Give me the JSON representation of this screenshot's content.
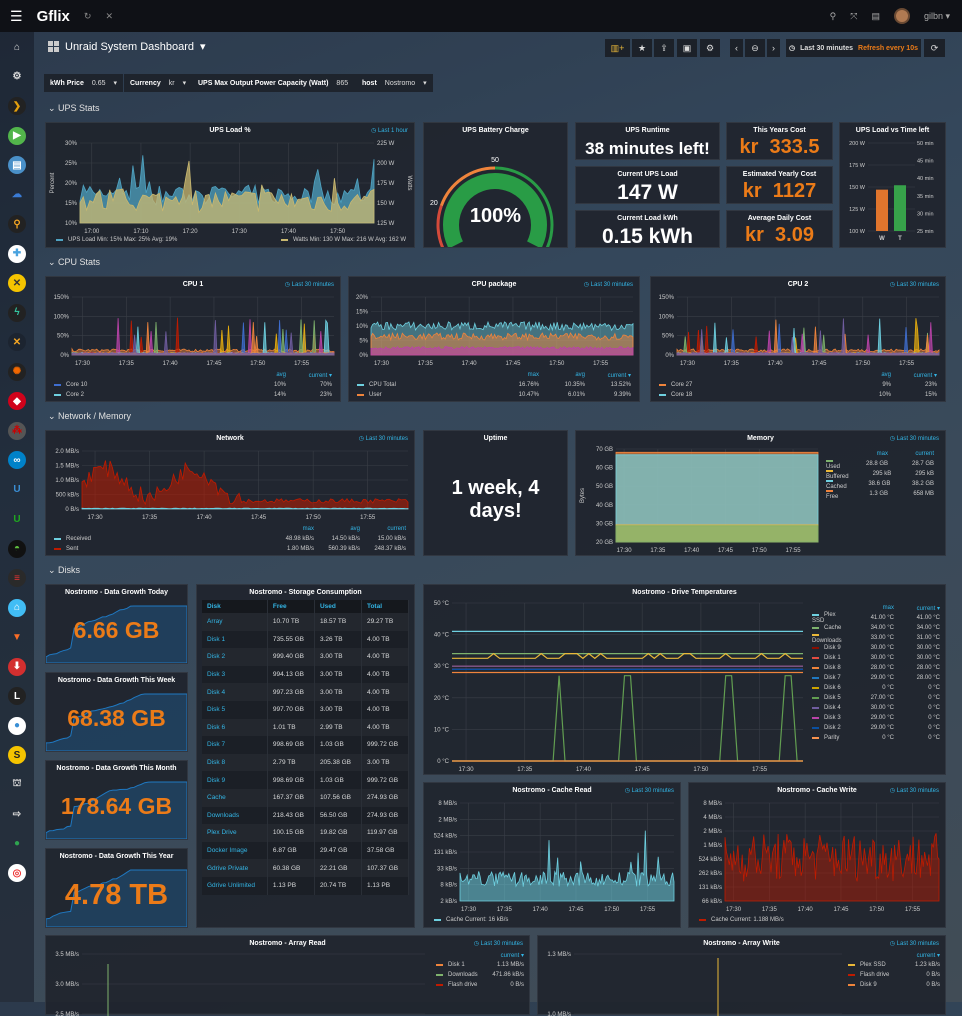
{
  "topbar": {
    "brand": "Gflix",
    "user": "gilbn"
  },
  "sidebar": {
    "items": [
      {
        "name": "home-icon",
        "glyph": "⌂",
        "color": "#ddd",
        "bg": "transparent"
      },
      {
        "name": "gear-icon",
        "glyph": "⚙",
        "color": "#ddd",
        "bg": "transparent"
      },
      {
        "name": "plex-icon",
        "glyph": "❯",
        "color": "#e5a00d",
        "bg": "#222"
      },
      {
        "name": "emby-icon",
        "glyph": "▶",
        "color": "#fff",
        "bg": "#52b54b"
      },
      {
        "name": "app-icon",
        "glyph": "▤",
        "color": "#fff",
        "bg": "#4a90c8"
      },
      {
        "name": "cloud-icon",
        "glyph": "☁",
        "color": "#3a7bd5",
        "bg": "transparent"
      },
      {
        "name": "search-icon",
        "glyph": "⚲",
        "color": "#f5a623",
        "bg": "#222"
      },
      {
        "name": "lifebuoy-icon",
        "glyph": "✚",
        "color": "#4aa3df",
        "bg": "#fff"
      },
      {
        "name": "radarr-icon",
        "glyph": "✕",
        "color": "#333",
        "bg": "#f5c400"
      },
      {
        "name": "lightning-icon",
        "glyph": "ϟ",
        "color": "#35c5a0",
        "bg": "#222"
      },
      {
        "name": "sonarr-icon",
        "glyph": "✕",
        "color": "#f5a623",
        "bg": "#1c2430"
      },
      {
        "name": "grafana-icon",
        "glyph": "✺",
        "color": "#f46800",
        "bg": "#222"
      },
      {
        "name": "shield-icon",
        "glyph": "◆",
        "color": "#fff",
        "bg": "#d0021b"
      },
      {
        "name": "dots-icon",
        "glyph": "⁂",
        "color": "#c00",
        "bg": "#555"
      },
      {
        "name": "nextcloud-icon",
        "glyph": "∞",
        "color": "#fff",
        "bg": "#0082c9"
      },
      {
        "name": "ubiquiti-icon",
        "glyph": "U",
        "color": "#3a8fd5",
        "bg": "transparent"
      },
      {
        "name": "u-green-icon",
        "glyph": "U",
        "color": "#1fa81f",
        "bg": "transparent"
      },
      {
        "name": "bowl-icon",
        "glyph": "◓",
        "color": "#5fbf3f",
        "bg": "#111"
      },
      {
        "name": "toggle-icon",
        "glyph": "≡",
        "color": "#e33",
        "bg": "#2a2a2a"
      },
      {
        "name": "home-assistant-icon",
        "glyph": "⌂",
        "color": "#fff",
        "bg": "#41bdf5"
      },
      {
        "name": "gitlab-icon",
        "glyph": "▼",
        "color": "#fc6d26",
        "bg": "transparent"
      },
      {
        "name": "download-icon",
        "glyph": "⬇",
        "color": "#fff",
        "bg": "#d32f2f"
      },
      {
        "name": "lazy-icon",
        "glyph": "L",
        "color": "#fff",
        "bg": "#222"
      },
      {
        "name": "drop-icon",
        "glyph": "●",
        "color": "#3a8fd5",
        "bg": "#fff"
      },
      {
        "name": "sab-icon",
        "glyph": "S",
        "color": "#222",
        "bg": "#f5c400"
      },
      {
        "name": "library-icon",
        "glyph": "⛫",
        "color": "#ddd",
        "bg": "transparent"
      },
      {
        "name": "sign-out-icon",
        "glyph": "⇨",
        "color": "#ddd",
        "bg": "transparent"
      },
      {
        "name": "github-icon",
        "glyph": "●",
        "color": "#2ea44f",
        "bg": "transparent"
      },
      {
        "name": "lifebuoy-red-icon",
        "glyph": "◎",
        "color": "#e33",
        "bg": "#fff"
      }
    ]
  },
  "header": {
    "title": "Unraid System Dashboard",
    "time_range": "Last 30 minutes",
    "refresh": "Refresh every 10s"
  },
  "variables": [
    {
      "label": "kWh Price",
      "value": "0.65"
    },
    {
      "label": "Currency",
      "value": "kr"
    },
    {
      "label": "UPS Max Output Power Capacity (Watt)",
      "value": "865"
    },
    {
      "label": "host",
      "value": "Nostromo"
    }
  ],
  "rows": {
    "ups": "UPS Stats",
    "cpu": "CPU Stats",
    "net": "Network / Memory",
    "disks": "Disks"
  },
  "ups_load": {
    "title": "UPS Load %",
    "time": "Last 1 hour",
    "ylabel": "Percent",
    "y2label": "Watts",
    "yticks": [
      "10%",
      "15%",
      "20%",
      "25%",
      "30%"
    ],
    "y2ticks": [
      "125 W",
      "150 W",
      "175 W",
      "200 W",
      "225 W"
    ],
    "xticks": [
      "17:00",
      "17:10",
      "17:20",
      "17:30",
      "17:40",
      "17:50"
    ],
    "legend_left": "UPS Load  Min: 15%  Max: 25%  Avg: 19%",
    "legend_right": "Watts  Min: 130 W  Max: 216 W  Avg: 162 W",
    "colors": {
      "load": "#4fa3c2",
      "watts": "#c9b870"
    }
  },
  "battery": {
    "title": "UPS Battery Charge",
    "value": "100%",
    "percent": 100,
    "thresholds": [
      "0",
      "20",
      "50",
      "100"
    ]
  },
  "stats": {
    "runtime": {
      "title": "UPS Runtime",
      "value": "38 minutes left!"
    },
    "load": {
      "title": "Current UPS Load",
      "value": "147 W"
    },
    "kwh": {
      "title": "Current Load kWh",
      "value": "0.15 kWh"
    },
    "year_cost": {
      "title": "This Years Cost",
      "value": "kr  333.5"
    },
    "est_cost": {
      "title": "Estimated Yearly Cost",
      "value": "kr  1127"
    },
    "daily_cost": {
      "title": "Average Daily Cost",
      "value": "kr  3.09"
    }
  },
  "ups_bars": {
    "title": "UPS Load vs Time left",
    "yticks": [
      "100 W",
      "125 W",
      "150 W",
      "175 W",
      "200 W"
    ],
    "y2ticks": [
      "25 min",
      "30 min",
      "35 min",
      "40 min",
      "45 min",
      "50 min"
    ],
    "categories": [
      "W",
      "T"
    ],
    "values": [
      147,
      38
    ],
    "colors": [
      "#e0752d",
      "#37a24a"
    ]
  },
  "cpu1": {
    "title": "CPU 1",
    "time": "Last 30 minutes",
    "yticks": [
      "0%",
      "50%",
      "100%",
      "150%"
    ],
    "xticks": [
      "17:30",
      "17:35",
      "17:40",
      "17:45",
      "17:50",
      "17:55"
    ],
    "headers": [
      "avg",
      "current ▾"
    ],
    "legend": [
      {
        "name": "Core 10",
        "color": "#3f6ed0",
        "v": [
          "10%",
          "70%"
        ]
      },
      {
        "name": "Core 2",
        "color": "#6ed0e0",
        "v": [
          "14%",
          "23%"
        ]
      }
    ]
  },
  "cpupkg": {
    "title": "CPU package",
    "time": "Last 30 minutes",
    "yticks": [
      "0%",
      "5%",
      "10%",
      "15%",
      "20%"
    ],
    "xticks": [
      "17:30",
      "17:35",
      "17:40",
      "17:45",
      "17:50",
      "17:55"
    ],
    "headers": [
      "max",
      "avg",
      "current ▾"
    ],
    "legend": [
      {
        "name": "CPU Total",
        "color": "#6ed0e0",
        "v": [
          "16.76%",
          "10.35%",
          "13.52%"
        ]
      },
      {
        "name": "User",
        "color": "#ef843c",
        "v": [
          "10.47%",
          "6.01%",
          "9.39%"
        ]
      }
    ]
  },
  "cpu2": {
    "title": "CPU 2",
    "time": "Last 30 minutes",
    "yticks": [
      "0%",
      "50%",
      "100%",
      "150%"
    ],
    "xticks": [
      "17:30",
      "17:35",
      "17:40",
      "17:45",
      "17:50",
      "17:55"
    ],
    "headers": [
      "avg",
      "current ▾"
    ],
    "legend": [
      {
        "name": "Core 27",
        "color": "#ef843c",
        "v": [
          "9%",
          "23%"
        ]
      },
      {
        "name": "Core 18",
        "color": "#6ed0e0",
        "v": [
          "10%",
          "15%"
        ]
      }
    ]
  },
  "network": {
    "title": "Network",
    "time": "Last 30 minutes",
    "yticks": [
      "0 B/s",
      "500 kB/s",
      "1.0 MB/s",
      "1.5 MB/s",
      "2.0 MB/s"
    ],
    "xticks": [
      "17:30",
      "17:35",
      "17:40",
      "17:45",
      "17:50",
      "17:55"
    ],
    "headers": [
      "max",
      "avg",
      "current"
    ],
    "legend": [
      {
        "name": "Received",
        "color": "#6ed0e0",
        "v": [
          "48.98 kB/s",
          "14.50 kB/s",
          "15.00 kB/s"
        ]
      },
      {
        "name": "Sent",
        "color": "#bf1b00",
        "v": [
          "1.80 MB/s",
          "560.39 kB/s",
          "248.37 kB/s"
        ]
      }
    ]
  },
  "uptime": {
    "title": "Uptime",
    "value_line1": "1 week, 4",
    "value_line2": "days!"
  },
  "memory": {
    "title": "Memory",
    "time": "Last 30 minutes",
    "ylabel": "Bytes",
    "yticks": [
      "20 GB",
      "30 GB",
      "40 GB",
      "50 GB",
      "60 GB",
      "70 GB"
    ],
    "xticks": [
      "17:30",
      "17:35",
      "17:40",
      "17:45",
      "17:50",
      "17:55"
    ],
    "headers": [
      "max",
      "current"
    ],
    "legend": [
      {
        "name": "Used",
        "color": "#7eb26d",
        "v": [
          "28.8 GB",
          "28.7 GB"
        ]
      },
      {
        "name": "Buffered",
        "color": "#eab839",
        "v": [
          "295 kB",
          "295 kB"
        ]
      },
      {
        "name": "Cached",
        "color": "#6ed0e0",
        "v": [
          "38.6 GB",
          "38.2 GB"
        ]
      },
      {
        "name": "Free",
        "color": "#ef843c",
        "v": [
          "1.3 GB",
          "658 MB"
        ]
      }
    ]
  },
  "growth": [
    {
      "title": "Nostromo - Data Growth Today",
      "value": "6.66 GB"
    },
    {
      "title": "Nostromo - Data Growth This Week",
      "value": "68.38 GB"
    },
    {
      "title": "Nostromo - Data Growth This Month",
      "value": "178.64 GB"
    },
    {
      "title": "Nostromo - Data Growth This Year",
      "value": "4.78 TB"
    }
  ],
  "storage": {
    "title": "Nostromo - Storage Consumption",
    "columns": [
      "Disk",
      "Free",
      "Used",
      "Total"
    ],
    "rows": [
      [
        "Array",
        "10.70 TB",
        "18.57 TB",
        "29.27 TB"
      ],
      [
        "Disk 1",
        "735.55 GB",
        "3.26 TB",
        "4.00 TB"
      ],
      [
        "Disk 2",
        "999.40 GB",
        "3.00 TB",
        "4.00 TB"
      ],
      [
        "Disk 3",
        "994.13 GB",
        "3.00 TB",
        "4.00 TB"
      ],
      [
        "Disk 4",
        "997.23 GB",
        "3.00 TB",
        "4.00 TB"
      ],
      [
        "Disk 5",
        "997.70 GB",
        "3.00 TB",
        "4.00 TB"
      ],
      [
        "Disk 6",
        "1.01 TB",
        "2.99 TB",
        "4.00 TB"
      ],
      [
        "Disk 7",
        "998.69 GB",
        "1.03 GB",
        "999.72 GB"
      ],
      [
        "Disk 8",
        "2.79 TB",
        "205.38 GB",
        "3.00 TB"
      ],
      [
        "Disk 9",
        "998.69 GB",
        "1.03 GB",
        "999.72 GB"
      ],
      [
        "Cache",
        "167.37 GB",
        "107.56 GB",
        "274.93 GB"
      ],
      [
        "Downloads",
        "218.43 GB",
        "56.50 GB",
        "274.93 GB"
      ],
      [
        "Plex Drive",
        "100.15 GB",
        "19.82 GB",
        "119.97 GB"
      ],
      [
        "Docker Image",
        "6.87 GB",
        "29.47 GB",
        "37.58 GB"
      ],
      [
        "Gdrive Private",
        "60.38 GB",
        "22.21 GB",
        "107.37 GB"
      ],
      [
        "Gdrive Unlimited",
        "1.13 PB",
        "20.74 TB",
        "1.13 PB"
      ]
    ]
  },
  "temps": {
    "title": "Nostromo - Drive Temperatures",
    "yticks": [
      "0 °C",
      "10 °C",
      "20 °C",
      "30 °C",
      "40 °C",
      "50 °C"
    ],
    "xticks": [
      "17:30",
      "17:35",
      "17:40",
      "17:45",
      "17:50",
      "17:55"
    ],
    "headers": [
      "max",
      "current ▾"
    ],
    "legend": [
      {
        "name": "Plex SSD",
        "color": "#6ed0e0",
        "v": [
          "41.00 °C",
          "41.00 °C"
        ]
      },
      {
        "name": "Cache",
        "color": "#7eb26d",
        "v": [
          "34.00 °C",
          "34.00 °C"
        ]
      },
      {
        "name": "Downloads",
        "color": "#eab839",
        "v": [
          "33.00 °C",
          "31.00 °C"
        ]
      },
      {
        "name": "Disk 9",
        "color": "#890f02",
        "v": [
          "30.00 °C",
          "30.00 °C"
        ]
      },
      {
        "name": "Disk 1",
        "color": "#e24d42",
        "v": [
          "30.00 °C",
          "30.00 °C"
        ]
      },
      {
        "name": "Disk 8",
        "color": "#ef843c",
        "v": [
          "28.00 °C",
          "28.00 °C"
        ]
      },
      {
        "name": "Disk 7",
        "color": "#1f78c1",
        "v": [
          "29.00 °C",
          "28.00 °C"
        ]
      },
      {
        "name": "Disk 6",
        "color": "#cca300",
        "v": [
          "0 °C",
          "0 °C"
        ]
      },
      {
        "name": "Disk 5",
        "color": "#629e51",
        "v": [
          "27.00 °C",
          "0 °C"
        ]
      },
      {
        "name": "Disk 4",
        "color": "#705da0",
        "v": [
          "30.00 °C",
          "0 °C"
        ]
      },
      {
        "name": "Disk 3",
        "color": "#ba43a9",
        "v": [
          "29.00 °C",
          "0 °C"
        ]
      },
      {
        "name": "Disk 2",
        "color": "#0a50a1",
        "v": [
          "29.00 °C",
          "0 °C"
        ]
      },
      {
        "name": "Parity",
        "color": "#f9934e",
        "v": [
          "0 °C",
          "0 °C"
        ]
      }
    ]
  },
  "cache_read": {
    "title": "Nostromo - Cache Read",
    "time": "Last 30 minutes",
    "yticks": [
      "2 kB/s",
      "8 kB/s",
      "33 kB/s",
      "131 kB/s",
      "524 kB/s",
      "2 MB/s",
      "8 MB/s"
    ],
    "xticks": [
      "17:30",
      "17:35",
      "17:40",
      "17:45",
      "17:50",
      "17:55"
    ],
    "legend": "Cache  Current: 16 kB/s",
    "color": "#6ed0e0"
  },
  "cache_write": {
    "title": "Nostromo - Cache Write",
    "time": "Last 30 minutes",
    "yticks": [
      "66 kB/s",
      "131 kB/s",
      "262 kB/s",
      "524 kB/s",
      "1 MB/s",
      "2 MB/s",
      "4 MB/s",
      "8 MB/s"
    ],
    "xticks": [
      "17:30",
      "17:35",
      "17:40",
      "17:45",
      "17:50",
      "17:55"
    ],
    "legend": "Cache  Current: 1.188 MB/s",
    "color": "#bf1b00"
  },
  "array_read": {
    "title": "Nostromo - Array Read",
    "time": "Last 30 minutes",
    "yticks": [
      "2.5 MB/s",
      "3.0 MB/s",
      "3.5 MB/s"
    ],
    "headers": [
      "current ▾"
    ],
    "legend": [
      {
        "name": "Disk 1",
        "color": "#ef843c",
        "v": [
          "1.13 MB/s"
        ]
      },
      {
        "name": "Downloads",
        "color": "#7eb26d",
        "v": [
          "471.86 kB/s"
        ]
      },
      {
        "name": "Flash drive",
        "color": "#bf1b00",
        "v": [
          "0 B/s"
        ]
      }
    ]
  },
  "array_write": {
    "title": "Nostromo - Array Write",
    "time": "Last 30 minutes",
    "yticks": [
      "1.0 MB/s",
      "1.3 MB/s"
    ],
    "headers": [
      "current ▾"
    ],
    "legend": [
      {
        "name": "Plex SSD",
        "color": "#eab839",
        "v": [
          "1.23 kB/s"
        ]
      },
      {
        "name": "Flash drive",
        "color": "#bf1b00",
        "v": [
          "0 B/s"
        ]
      },
      {
        "name": "Disk 9",
        "color": "#ef843c",
        "v": [
          "0 B/s"
        ]
      }
    ]
  }
}
